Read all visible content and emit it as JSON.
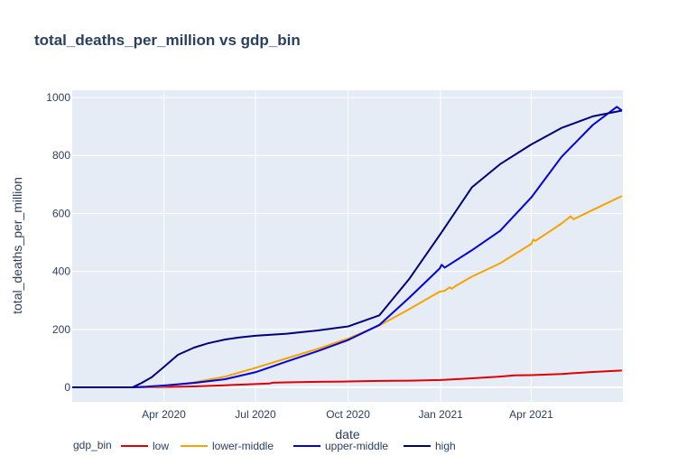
{
  "chart_data": {
    "type": "line",
    "title": "total_deaths_per_million vs gdp_bin",
    "xlabel": "date",
    "ylabel": "total_deaths_per_million",
    "x_range": [
      "2020-01-01",
      "2021-07-01"
    ],
    "x_ticks": [
      {
        "date": "2020-04-01",
        "label": "Apr 2020"
      },
      {
        "date": "2020-07-01",
        "label": "Jul 2020"
      },
      {
        "date": "2020-10-01",
        "label": "Oct 2020"
      },
      {
        "date": "2021-01-01",
        "label": "Jan 2021"
      },
      {
        "date": "2021-04-01",
        "label": "Apr 2021"
      }
    ],
    "ylim": [
      -50,
      1025
    ],
    "y_ticks": [
      0,
      200,
      400,
      600,
      800,
      1000
    ],
    "grid": true,
    "legend": {
      "title": "gdp_bin",
      "placement": "bottom-left, horizontal"
    },
    "series": [
      {
        "name": "low",
        "color": "#e00000",
        "points": [
          [
            "2020-01-01",
            0
          ],
          [
            "2020-03-01",
            0
          ],
          [
            "2020-04-01",
            1
          ],
          [
            "2020-05-01",
            3
          ],
          [
            "2020-06-01",
            7
          ],
          [
            "2020-07-01",
            11
          ],
          [
            "2020-07-15",
            13
          ],
          [
            "2020-07-18",
            16
          ],
          [
            "2020-08-01",
            17
          ],
          [
            "2020-09-01",
            19
          ],
          [
            "2020-10-01",
            20
          ],
          [
            "2020-11-01",
            22
          ],
          [
            "2020-12-01",
            23
          ],
          [
            "2021-01-01",
            25
          ],
          [
            "2021-02-01",
            31
          ],
          [
            "2021-03-01",
            37
          ],
          [
            "2021-03-15",
            41
          ],
          [
            "2021-04-01",
            42
          ],
          [
            "2021-05-01",
            46
          ],
          [
            "2021-06-01",
            53
          ],
          [
            "2021-06-30",
            58
          ]
        ]
      },
      {
        "name": "lower-middle",
        "color": "#f5a300",
        "points": [
          [
            "2020-01-01",
            0
          ],
          [
            "2020-03-01",
            0
          ],
          [
            "2020-03-15",
            1
          ],
          [
            "2020-04-01",
            4
          ],
          [
            "2020-05-01",
            17
          ],
          [
            "2020-06-01",
            37
          ],
          [
            "2020-07-01",
            67
          ],
          [
            "2020-08-01",
            100
          ],
          [
            "2020-09-01",
            133
          ],
          [
            "2020-10-01",
            168
          ],
          [
            "2020-11-01",
            213
          ],
          [
            "2020-12-01",
            270
          ],
          [
            "2020-12-31",
            330
          ],
          [
            "2021-01-05",
            333
          ],
          [
            "2021-01-10",
            345
          ],
          [
            "2021-01-12",
            340
          ],
          [
            "2021-01-16",
            350
          ],
          [
            "2021-02-01",
            382
          ],
          [
            "2021-03-01",
            428
          ],
          [
            "2021-04-01",
            495
          ],
          [
            "2021-04-03",
            510
          ],
          [
            "2021-04-05",
            505
          ],
          [
            "2021-05-01",
            565
          ],
          [
            "2021-05-10",
            590
          ],
          [
            "2021-05-13",
            580
          ],
          [
            "2021-06-01",
            612
          ],
          [
            "2021-06-30",
            660
          ]
        ]
      },
      {
        "name": "upper-middle",
        "color": "#0000e0",
        "points": [
          [
            "2020-01-01",
            0
          ],
          [
            "2020-03-01",
            0
          ],
          [
            "2020-03-15",
            2
          ],
          [
            "2020-04-01",
            6
          ],
          [
            "2020-05-01",
            15
          ],
          [
            "2020-06-01",
            28
          ],
          [
            "2020-07-01",
            52
          ],
          [
            "2020-08-01",
            89
          ],
          [
            "2020-09-01",
            125
          ],
          [
            "2020-10-01",
            163
          ],
          [
            "2020-11-01",
            215
          ],
          [
            "2020-12-01",
            310
          ],
          [
            "2020-12-31",
            410
          ],
          [
            "2021-01-02",
            423
          ],
          [
            "2021-01-05",
            413
          ],
          [
            "2021-02-01",
            473
          ],
          [
            "2021-03-01",
            540
          ],
          [
            "2021-04-01",
            655
          ],
          [
            "2021-05-01",
            795
          ],
          [
            "2021-06-01",
            905
          ],
          [
            "2021-06-25",
            968
          ],
          [
            "2021-06-28",
            960
          ],
          [
            "2021-06-30",
            955
          ]
        ]
      },
      {
        "name": "high",
        "color": "#00007a",
        "points": [
          [
            "2020-01-01",
            0
          ],
          [
            "2020-03-01",
            0
          ],
          [
            "2020-03-10",
            15
          ],
          [
            "2020-03-20",
            35
          ],
          [
            "2020-04-01",
            70
          ],
          [
            "2020-04-15",
            112
          ],
          [
            "2020-05-01",
            137
          ],
          [
            "2020-05-15",
            152
          ],
          [
            "2020-06-01",
            165
          ],
          [
            "2020-06-15",
            172
          ],
          [
            "2020-07-01",
            178
          ],
          [
            "2020-08-01",
            185
          ],
          [
            "2020-09-01",
            196
          ],
          [
            "2020-10-01",
            210
          ],
          [
            "2020-11-01",
            248
          ],
          [
            "2020-12-01",
            375
          ],
          [
            "2021-01-01",
            530
          ],
          [
            "2021-02-01",
            690
          ],
          [
            "2021-03-01",
            770
          ],
          [
            "2021-04-01",
            838
          ],
          [
            "2021-05-01",
            895
          ],
          [
            "2021-06-01",
            935
          ],
          [
            "2021-06-30",
            955
          ]
        ]
      }
    ]
  }
}
